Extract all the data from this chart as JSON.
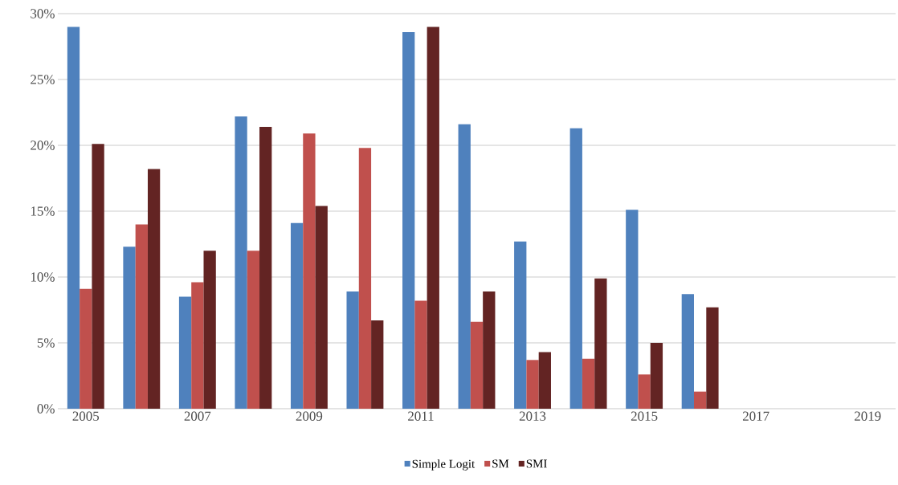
{
  "chart_data": {
    "type": "bar",
    "categories": [
      "2005",
      null,
      "2007",
      null,
      "2009",
      null,
      "2011",
      null,
      "2013",
      null,
      "2015",
      null,
      "2017",
      null,
      "2019"
    ],
    "series": [
      {
        "name": "Simple Logit",
        "color": "#4f81bd",
        "values": [
          29.0,
          12.3,
          8.5,
          22.2,
          14.1,
          8.9,
          28.6,
          21.6,
          12.7,
          21.3,
          15.1,
          8.7,
          null,
          null,
          null
        ]
      },
      {
        "name": "SM",
        "color": "#c0504d",
        "values": [
          9.1,
          14.0,
          9.6,
          12.0,
          20.9,
          19.8,
          8.2,
          6.6,
          3.7,
          3.8,
          2.6,
          1.3,
          null,
          null,
          null
        ]
      },
      {
        "name": "SMI",
        "color": "#632423",
        "values": [
          20.1,
          18.2,
          12.0,
          21.4,
          15.4,
          6.7,
          29.0,
          8.9,
          4.3,
          9.9,
          5.0,
          7.7,
          null,
          null,
          null
        ]
      }
    ],
    "ylim": [
      0,
      30
    ],
    "yticks": [
      {
        "value": 0,
        "label": "0%"
      },
      {
        "value": 5,
        "label": "5%"
      },
      {
        "value": 10,
        "label": "10%"
      },
      {
        "value": 15,
        "label": "15%"
      },
      {
        "value": 20,
        "label": "20%"
      },
      {
        "value": 25,
        "label": "25%"
      },
      {
        "value": 30,
        "label": "30%"
      }
    ],
    "grid": "y",
    "legend": "bottom"
  }
}
